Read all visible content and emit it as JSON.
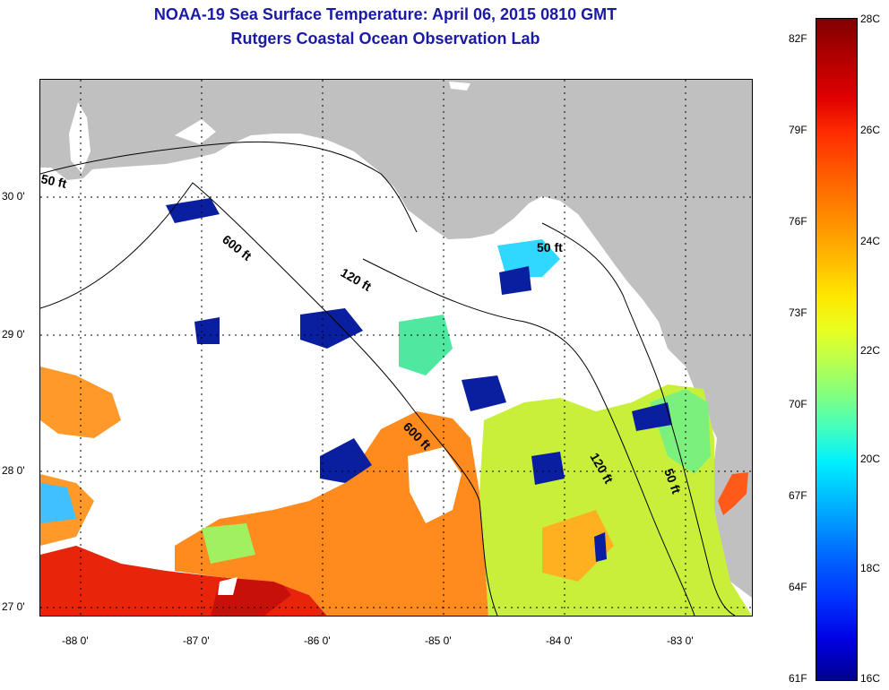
{
  "title": {
    "line1": "NOAA-19 Sea Surface Temperature:  April 06, 2015 0810 GMT",
    "line2": "Rutgers Coastal Ocean Observation Lab"
  },
  "axes": {
    "longitude_ticks": [
      "-88 0'",
      "-87 0'",
      "-86 0'",
      "-85 0'",
      "-84 0'",
      "-83 0'"
    ],
    "latitude_ticks": [
      "30 0'",
      "29 0'",
      "28 0'",
      "27 0'"
    ]
  },
  "contours": [
    "50 ft",
    "600 ft",
    "120 ft",
    "50 ft",
    "600 ft",
    "120 ft",
    "50 ft"
  ],
  "colorbar": {
    "fahrenheit": [
      "82F",
      "79F",
      "76F",
      "73F",
      "70F",
      "67F",
      "64F",
      "61F"
    ],
    "celsius": [
      "28C",
      "26C",
      "24C",
      "22C",
      "20C",
      "18C",
      "16C"
    ]
  },
  "colors": {
    "land": "#c0c0c0",
    "cloud": "#ffffff",
    "title": "#1a1aa6",
    "warm": "#ff8a1e",
    "hot": "#e81a0a",
    "cool": "#7cf07c",
    "cold": "#0a1ea0"
  }
}
